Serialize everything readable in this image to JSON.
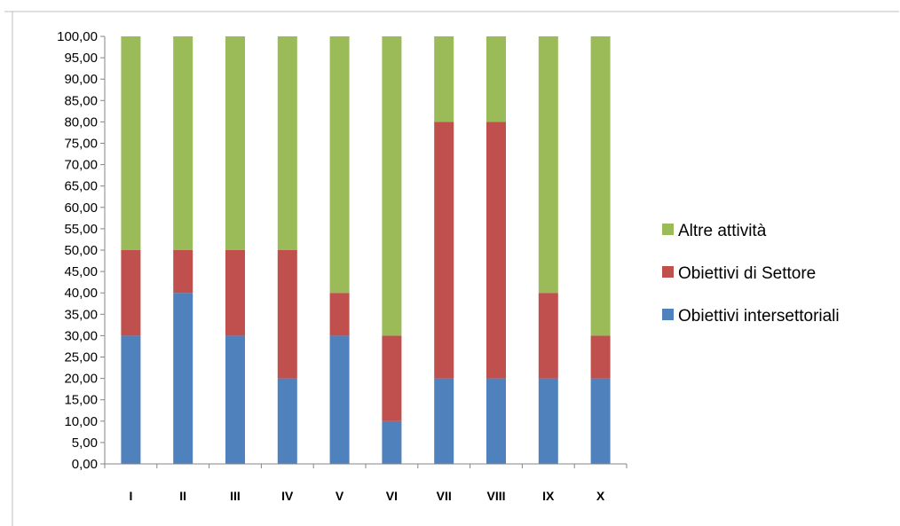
{
  "chart_data": {
    "type": "bar",
    "stacked": true,
    "categories": [
      "I",
      "II",
      "III",
      "IV",
      "V",
      "VI",
      "VII",
      "VIII",
      "IX",
      "X"
    ],
    "series": [
      {
        "name": "Obiettivi intersettoriali",
        "color": "#4f81bd",
        "values": [
          30,
          40,
          30,
          20,
          30,
          10,
          20,
          20,
          20,
          20
        ]
      },
      {
        "name": "Obiettivi di Settore",
        "color": "#c0504d",
        "values": [
          20,
          10,
          20,
          30,
          10,
          20,
          60,
          60,
          20,
          10
        ]
      },
      {
        "name": "Altre attività",
        "color": "#9bbb59",
        "values": [
          50,
          50,
          50,
          50,
          60,
          70,
          20,
          20,
          60,
          70
        ]
      }
    ],
    "ylim": [
      0,
      100
    ],
    "ytick_step": 5,
    "ytick_labels": [
      "0,00",
      "5,00",
      "10,00",
      "15,00",
      "20,00",
      "25,00",
      "30,00",
      "35,00",
      "40,00",
      "45,00",
      "50,00",
      "55,00",
      "60,00",
      "65,00",
      "70,00",
      "75,00",
      "80,00",
      "85,00",
      "90,00",
      "95,00",
      "100,00"
    ],
    "legend_position": "right",
    "legend_order": [
      "Altre attività",
      "Obiettivi di Settore",
      "Obiettivi intersettoriali"
    ],
    "grid": false
  }
}
